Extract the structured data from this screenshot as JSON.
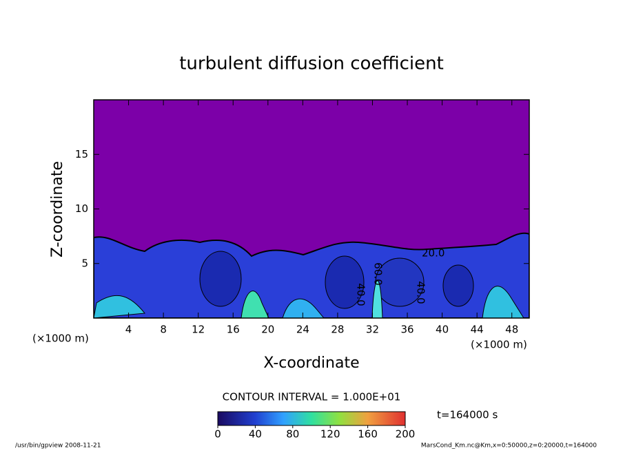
{
  "chart_data": {
    "type": "contour",
    "title": "turbulent diffusion coefficient",
    "x_label": "X-coordinate",
    "y_label": "Z-coordinate",
    "axis_unit": "(×1000 m)",
    "xlim": [
      0,
      50
    ],
    "xticks": [
      4,
      8,
      12,
      16,
      20,
      24,
      28,
      32,
      36,
      40,
      44,
      48
    ],
    "ylim": [
      0,
      20
    ],
    "yticks": [
      5,
      10,
      15
    ],
    "contour_labels": [
      "20.0",
      "60.0",
      "40.0",
      "40.0"
    ],
    "contour_interval": "CONTOUR INTERVAL = 1.000E+01",
    "colorbar": {
      "lim": [
        0,
        200
      ],
      "ticks": [
        0,
        40,
        80,
        120,
        160,
        200
      ]
    },
    "time_label": "t=164000 s",
    "footer_left": "/usr/bin/gpview   2008-11-21",
    "footer_right": "MarsCond_Km.nc@Km,x=0:50000,z=0:20000,t=164000"
  }
}
